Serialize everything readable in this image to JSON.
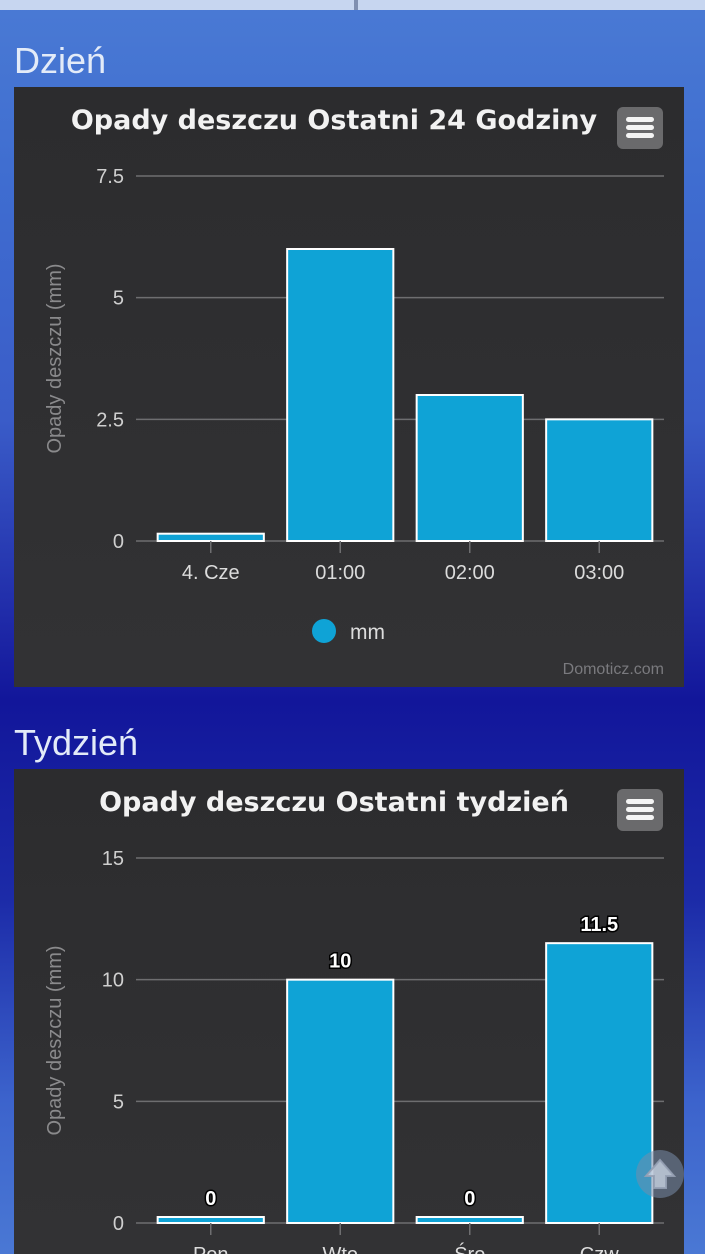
{
  "sections": {
    "day": {
      "heading": "Dzień"
    },
    "week": {
      "heading": "Tydzień"
    }
  },
  "charts": {
    "day": {
      "title": "Opady deszczu Ostatni 24 Godziny",
      "credits": "Domoticz.com",
      "legend": "mm"
    },
    "week": {
      "title": "Opady deszczu Ostatni tydzień"
    }
  },
  "colors": {
    "bar": "#0fa3d6",
    "background": "#2f2f31",
    "grid": "#6e6e70"
  },
  "chart_data": [
    {
      "type": "bar",
      "title": "Opady deszczu Ostatni 24 Godziny",
      "ylabel": "Opady deszczu (mm)",
      "xlabel": "",
      "categories": [
        "4. Cze",
        "01:00",
        "02:00",
        "03:00"
      ],
      "series": [
        {
          "name": "mm",
          "values": [
            0.15,
            6,
            3,
            2.5
          ]
        }
      ],
      "ylim": [
        0,
        7.5
      ],
      "yticks": [
        "0",
        "2.5",
        "5",
        "7.5"
      ],
      "grid": true,
      "legend": "bottom-center"
    },
    {
      "type": "bar",
      "title": "Opady deszczu Ostatni tydzień",
      "ylabel": "Opady deszczu (mm)",
      "xlabel": "",
      "categories": [
        "Pon",
        "Wto",
        "Śro",
        "Czw"
      ],
      "values": [
        0,
        10,
        0,
        11.5
      ],
      "data_labels": [
        "0",
        "10",
        "0",
        "11.5"
      ],
      "ylim": [
        0,
        15
      ],
      "yticks": [
        "0",
        "5",
        "10",
        "15"
      ],
      "grid": true
    }
  ]
}
